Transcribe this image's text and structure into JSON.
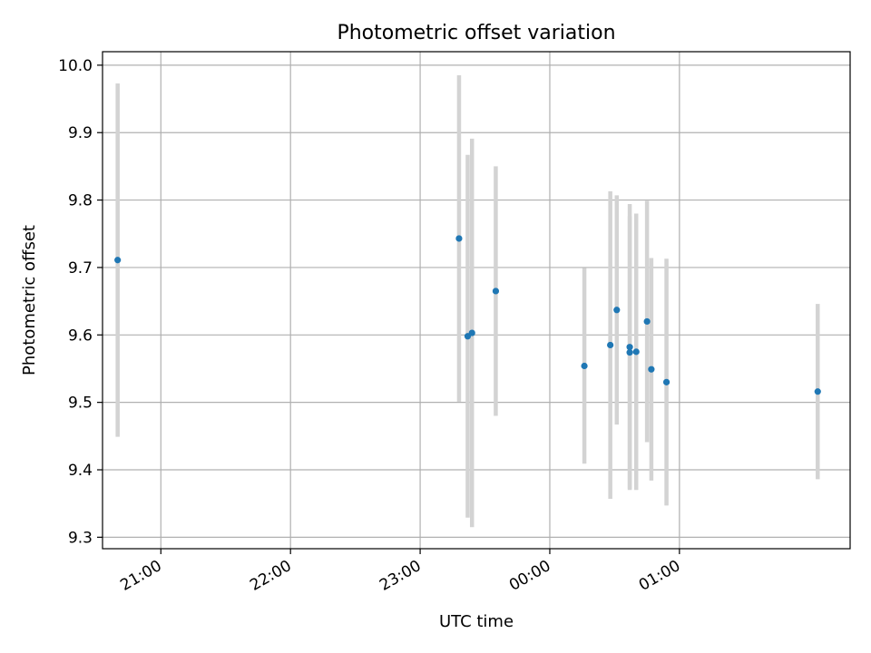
{
  "chart_data": {
    "type": "scatter",
    "title": "Photometric offset variation",
    "xlabel": "UTC time",
    "ylabel": "Photometric offset",
    "x_tick_labels": [
      "21:00",
      "22:00",
      "23:00",
      "00:00",
      "01:00"
    ],
    "y_tick_labels": [
      "9.3",
      "9.4",
      "9.5",
      "9.6",
      "9.7",
      "9.8",
      "9.9",
      "10.0"
    ],
    "x_axis": "time of day (UTC), two days spanning midnight",
    "xlim": [
      "20:33",
      "02:19"
    ],
    "ylim": [
      9.283,
      10.02
    ],
    "grid": true,
    "colors": {
      "point": "#1f77b4",
      "errorbar": "#d3d3d3",
      "grid": "#b0b0b0"
    },
    "series": [
      {
        "points": [
          {
            "x": "20:40",
            "y": 9.711,
            "err": 0.262
          },
          {
            "x": "23:18",
            "y": 9.743,
            "err": 0.242
          },
          {
            "x": "23:22",
            "y": 9.598,
            "err": 0.269
          },
          {
            "x": "23:24",
            "y": 9.603,
            "err": 0.288
          },
          {
            "x": "23:35",
            "y": 9.665,
            "err": 0.185
          },
          {
            "x": "00:16",
            "y": 9.554,
            "err": 0.145
          },
          {
            "x": "00:28",
            "y": 9.585,
            "err": 0.228
          },
          {
            "x": "00:31",
            "y": 9.637,
            "err": 0.17
          },
          {
            "x": "00:37",
            "y": 9.582,
            "err": 0.212
          },
          {
            "x": "00:37",
            "y": 9.574,
            "err": 0.202
          },
          {
            "x": "00:40",
            "y": 9.575,
            "err": 0.205
          },
          {
            "x": "00:45",
            "y": 9.62,
            "err": 0.179
          },
          {
            "x": "00:47",
            "y": 9.549,
            "err": 0.165
          },
          {
            "x": "00:54",
            "y": 9.53,
            "err": 0.183
          },
          {
            "x": "02:04",
            "y": 9.516,
            "err": 0.13
          }
        ]
      }
    ]
  }
}
